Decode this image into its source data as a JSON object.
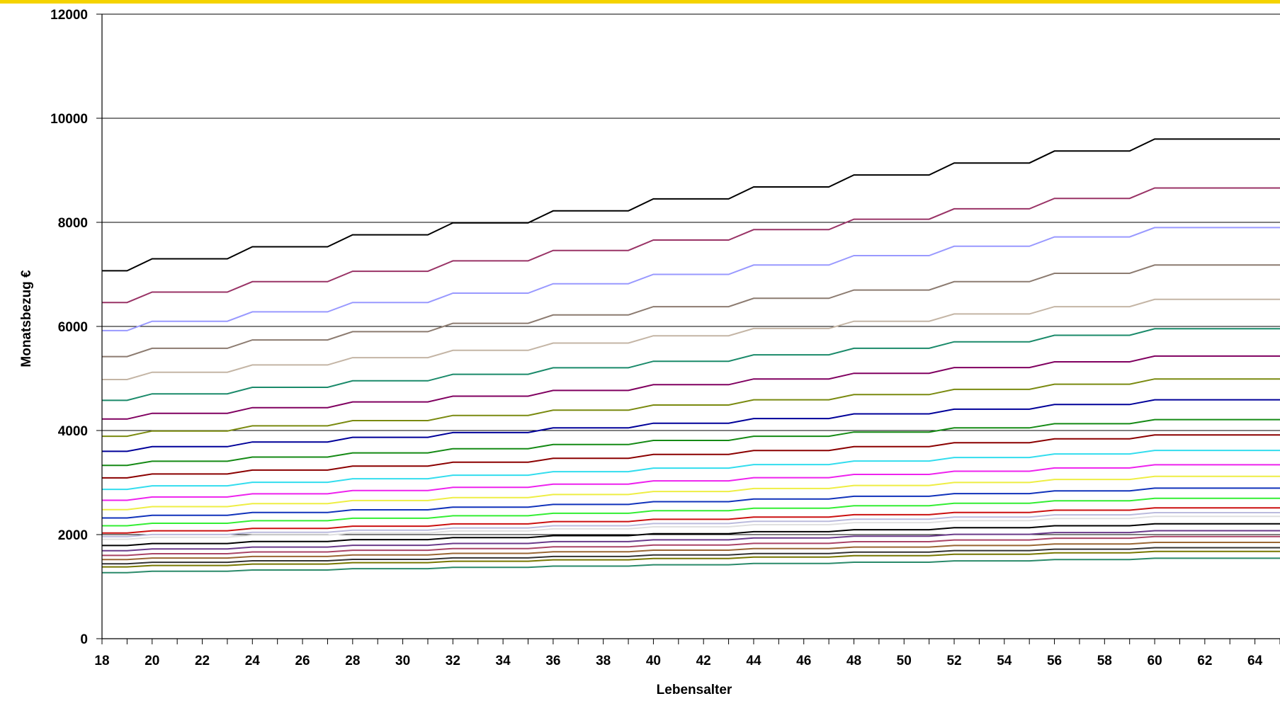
{
  "chart_data": {
    "type": "line",
    "title": "",
    "xlabel": "Lebensalter",
    "ylabel": "Monatsbezug €",
    "xlim": [
      18,
      65
    ],
    "ylim": [
      0,
      12000
    ],
    "grid": "horizontal",
    "legend": "none",
    "x_ticks": [
      "18",
      "20",
      "22",
      "24",
      "26",
      "28",
      "30",
      "32",
      "34",
      "36",
      "38",
      "40",
      "42",
      "44",
      "46",
      "48",
      "50",
      "52",
      "54",
      "56",
      "58",
      "60",
      "62",
      "64"
    ],
    "y_ticks": [
      "0",
      "2000",
      "4000",
      "6000",
      "8000",
      "10000",
      "12000"
    ],
    "series": [
      {
        "color": "#000000",
        "start": 7070,
        "step": 230
      },
      {
        "color": "#993366",
        "start": 6460,
        "step": 200
      },
      {
        "color": "#9999ff",
        "start": 5920,
        "step": 180
      },
      {
        "color": "#8c7b70",
        "start": 5420,
        "step": 160
      },
      {
        "color": "#c4b5a5",
        "start": 4980,
        "step": 140
      },
      {
        "color": "#1a8a6a",
        "start": 4580,
        "step": 125
      },
      {
        "color": "#800060",
        "start": 4220,
        "step": 110
      },
      {
        "color": "#7a8a10",
        "start": 3890,
        "step": 100
      },
      {
        "color": "#000099",
        "start": 3600,
        "step": 90
      },
      {
        "color": "#158a15",
        "start": 3330,
        "step": 80
      },
      {
        "color": "#8b0000",
        "start": 3090,
        "step": 75
      },
      {
        "color": "#33ddee",
        "start": 2870,
        "step": 68
      },
      {
        "color": "#ee22ee",
        "start": 2660,
        "step": 62
      },
      {
        "color": "#eeee44",
        "start": 2480,
        "step": 58
      },
      {
        "color": "#1133bb",
        "start": 2320,
        "step": 52
      },
      {
        "color": "#33ee33",
        "start": 2170,
        "step": 48
      },
      {
        "color": "#cc1111",
        "start": 2030,
        "step": 44
      },
      {
        "color": "#bbbbdd",
        "start": 1960,
        "step": 42
      },
      {
        "color": "#e0e0e0",
        "start": 1910,
        "step": 40
      },
      {
        "color": "#000000",
        "start": 1790,
        "step": 38
      },
      {
        "color": "#6a3a8a",
        "start": 1690,
        "step": 35
      },
      {
        "color": "#aa4466",
        "start": 1600,
        "step": 33
      },
      {
        "color": "#996633",
        "start": 1520,
        "step": 30
      },
      {
        "color": "#333333",
        "start": 1440,
        "step": 28
      },
      {
        "color": "#777700",
        "start": 1380,
        "step": 27
      },
      {
        "color": "#2a8a6a",
        "start": 1270,
        "step": 25
      }
    ]
  }
}
